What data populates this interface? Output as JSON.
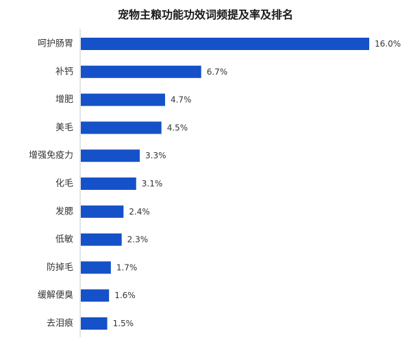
{
  "chart_data": {
    "type": "bar",
    "orientation": "horizontal",
    "title": "宠物主粮功能功效词频提及率及排名",
    "xlabel": "",
    "ylabel": "",
    "value_unit": "%",
    "categories": [
      "呵护肠胃",
      "补钙",
      "增肥",
      "美毛",
      "增强免疫力",
      "化毛",
      "发腮",
      "低敏",
      "防掉毛",
      "缓解便臭",
      "去泪痕"
    ],
    "values": [
      16.0,
      6.7,
      4.7,
      4.5,
      3.3,
      3.1,
      2.4,
      2.3,
      1.7,
      1.6,
      1.5
    ],
    "data_labels": [
      "16.0%",
      "6.7%",
      "4.7%",
      "4.5%",
      "3.3%",
      "3.1%",
      "2.4%",
      "2.3%",
      "1.7%",
      "1.6%",
      "1.5%"
    ],
    "xlim": [
      0,
      16.0
    ],
    "grid": false,
    "legend": "none",
    "bar_color": "#1551c8",
    "axis_color": "#c8c8c8"
  }
}
